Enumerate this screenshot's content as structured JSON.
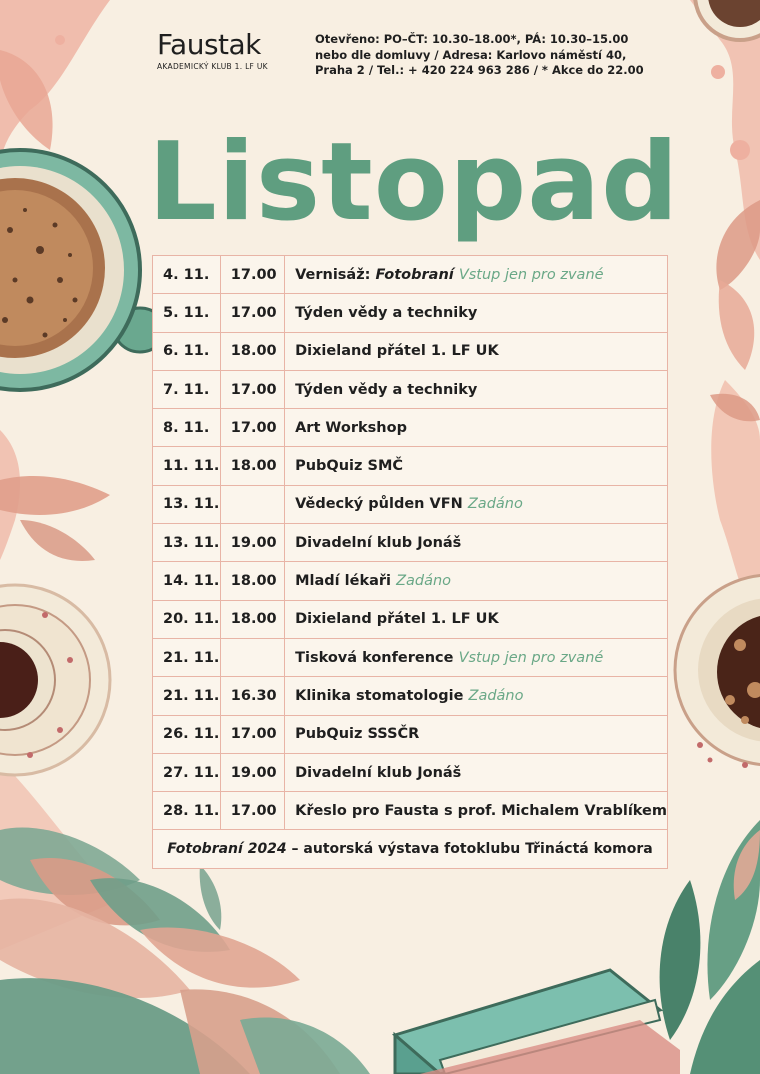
{
  "logo": {
    "name": "Faustak",
    "subtitle": "AKADEMICKÝ KLUB 1. LF UK"
  },
  "info": {
    "line1": "Otevřeno: PO–ČT: 10.30–18.00*, PÁ: 10.30–15.00",
    "line2": "nebo dle domluvy / Adresa: Karlovo náměstí 40,",
    "line3": "Praha 2 / Tel.: + 420 224 963 286 / * Akce do 22.00"
  },
  "title": "Listopad",
  "events": [
    {
      "date": "4. 11.",
      "time": "17.00",
      "pre": "Vernisáž: ",
      "italic": "Fotobraní",
      "note": "Vstup jen pro zvané"
    },
    {
      "date": "5. 11.",
      "time": "17.00",
      "name": "Týden vědy a techniky"
    },
    {
      "date": "6. 11.",
      "time": "18.00",
      "name": "Dixieland přátel 1. LF UK"
    },
    {
      "date": "7. 11.",
      "time": "17.00",
      "name": "Týden vědy a techniky"
    },
    {
      "date": "8. 11.",
      "time": "17.00",
      "name": "Art Workshop"
    },
    {
      "date": "11. 11.",
      "time": "18.00",
      "name": "PubQuiz SMČ"
    },
    {
      "date": "13. 11.",
      "time": "",
      "name": "Vědecký půlden VFN",
      "note": "Zadáno"
    },
    {
      "date": "13. 11.",
      "time": "19.00",
      "name": "Divadelní klub Jonáš"
    },
    {
      "date": "14. 11.",
      "time": "18.00",
      "name": "Mladí lékaři",
      "note": "Zadáno"
    },
    {
      "date": "20. 11.",
      "time": "18.00",
      "name": "Dixieland přátel 1. LF UK"
    },
    {
      "date": "21. 11.",
      "time": "",
      "name": "Tisková konference",
      "note": "Vstup jen pro zvané"
    },
    {
      "date": "21. 11.",
      "time": "16.30",
      "name": "Klinika stomatologie",
      "note": "Zadáno"
    },
    {
      "date": "26. 11.",
      "time": "17.00",
      "name": "PubQuiz SSSČR"
    },
    {
      "date": "27. 11.",
      "time": "19.00",
      "name": "Divadelní klub Jonáš"
    },
    {
      "date": "28. 11.",
      "time": "17.00",
      "name": "Křeslo pro Fausta s prof. Michalem Vrablíkem"
    }
  ],
  "footer": {
    "italic": "Fotobraní 2024",
    "rest": " – autorská výstava fotoklubu Třináctá komora"
  }
}
